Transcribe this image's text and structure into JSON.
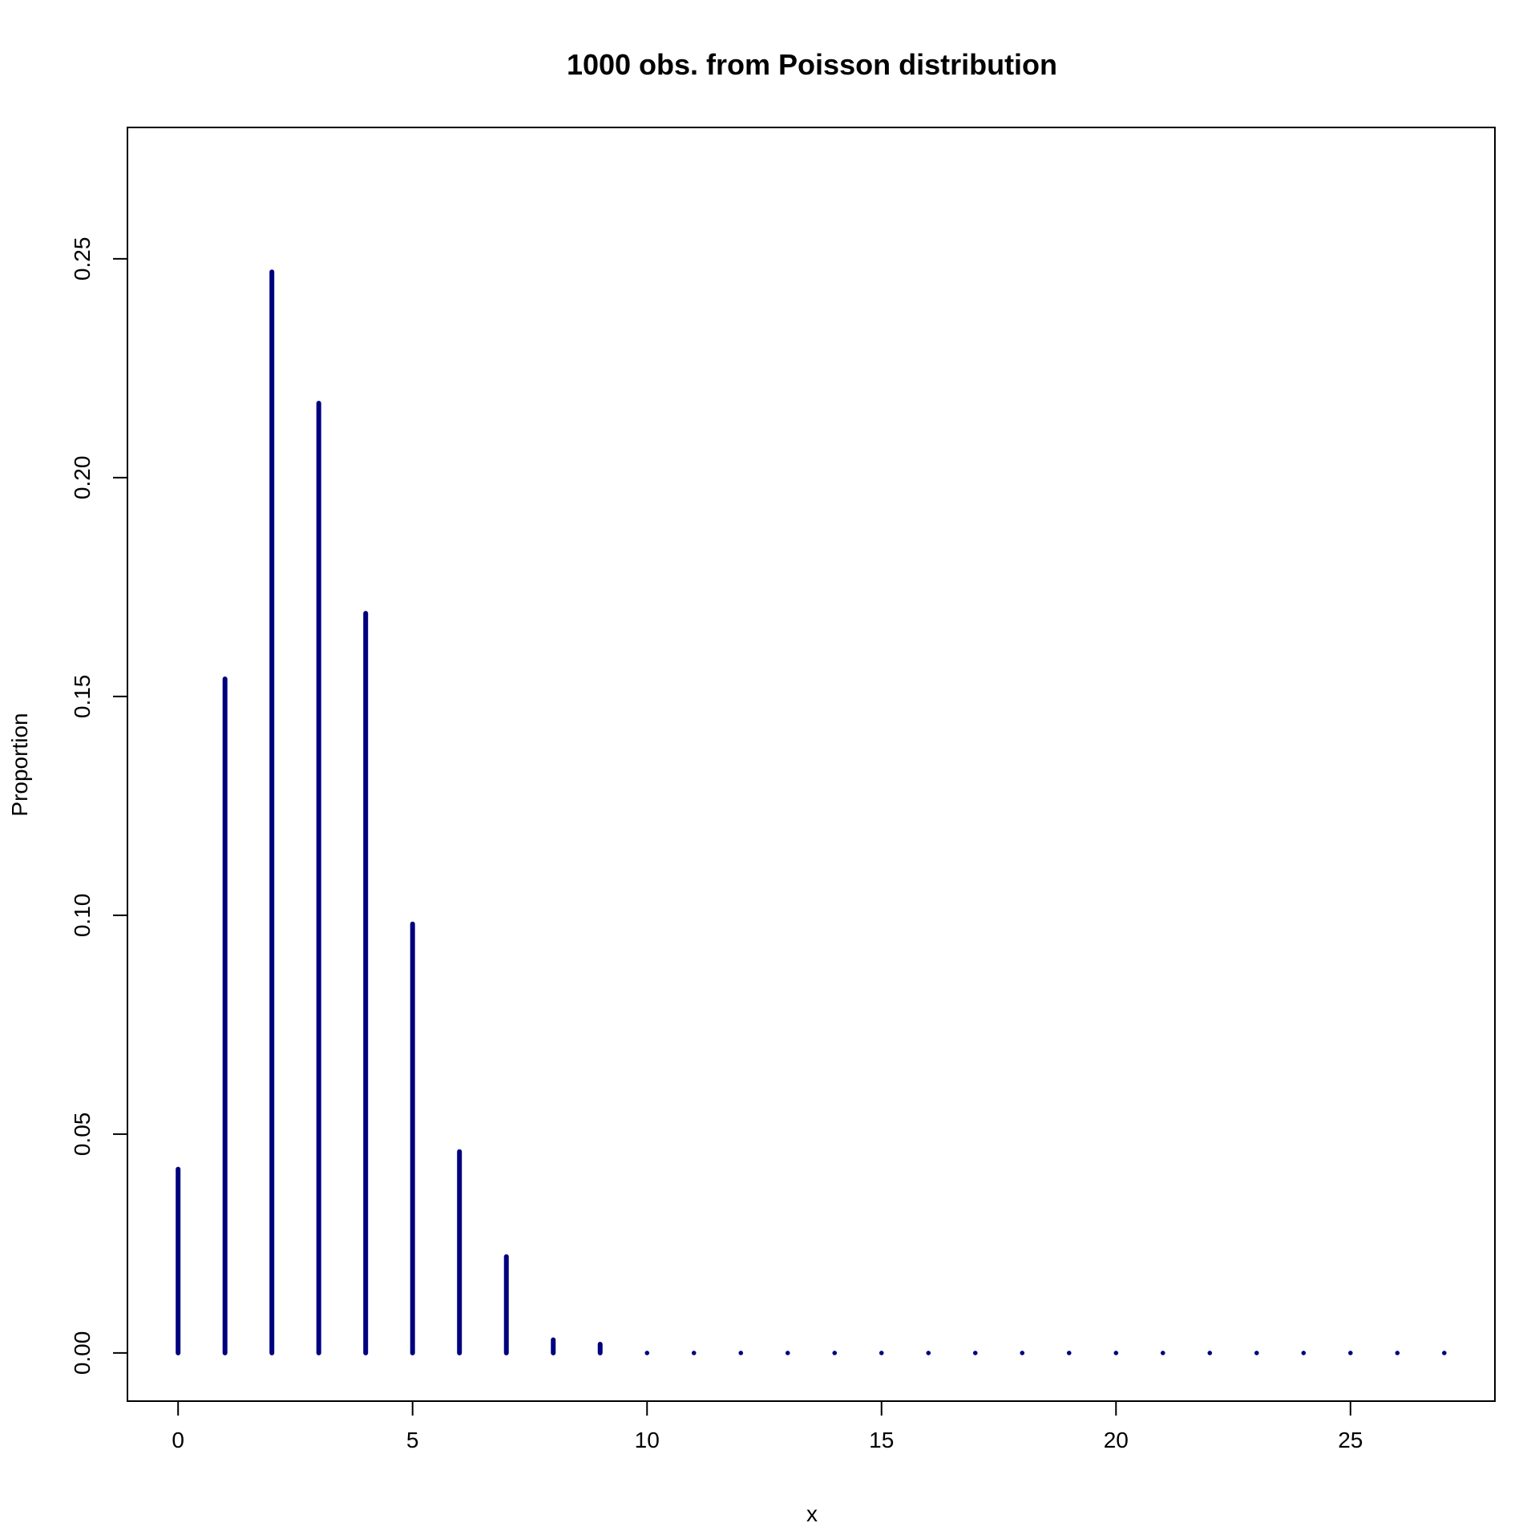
{
  "chart_data": {
    "type": "bar",
    "style": "spike",
    "title": "1000 obs. from Poisson distribution",
    "xlabel": "x",
    "ylabel": "Proportion",
    "xlim": [
      -1.08,
      28.08
    ],
    "ylim": [
      -0.011,
      0.28
    ],
    "x_ticks": [
      0,
      5,
      10,
      15,
      20,
      25
    ],
    "x_tick_labels": [
      "0",
      "5",
      "10",
      "15",
      "20",
      "25"
    ],
    "y_ticks": [
      0.0,
      0.05,
      0.1,
      0.15,
      0.2,
      0.25
    ],
    "y_tick_labels": [
      "0.00",
      "0.05",
      "0.10",
      "0.15",
      "0.20",
      "0.25"
    ],
    "grid": false,
    "color": "#00007f",
    "x": [
      0,
      1,
      2,
      3,
      4,
      5,
      6,
      7,
      8,
      9,
      10,
      11,
      12,
      13,
      14,
      15,
      16,
      17,
      18,
      19,
      20,
      21,
      22,
      23,
      24,
      25,
      26,
      27
    ],
    "values": [
      0.042,
      0.154,
      0.247,
      0.217,
      0.169,
      0.098,
      0.046,
      0.022,
      0.003,
      0.002,
      0,
      0,
      0,
      0,
      0,
      0,
      0,
      0,
      0,
      0,
      0,
      0,
      0,
      0,
      0,
      0,
      0,
      0
    ]
  }
}
